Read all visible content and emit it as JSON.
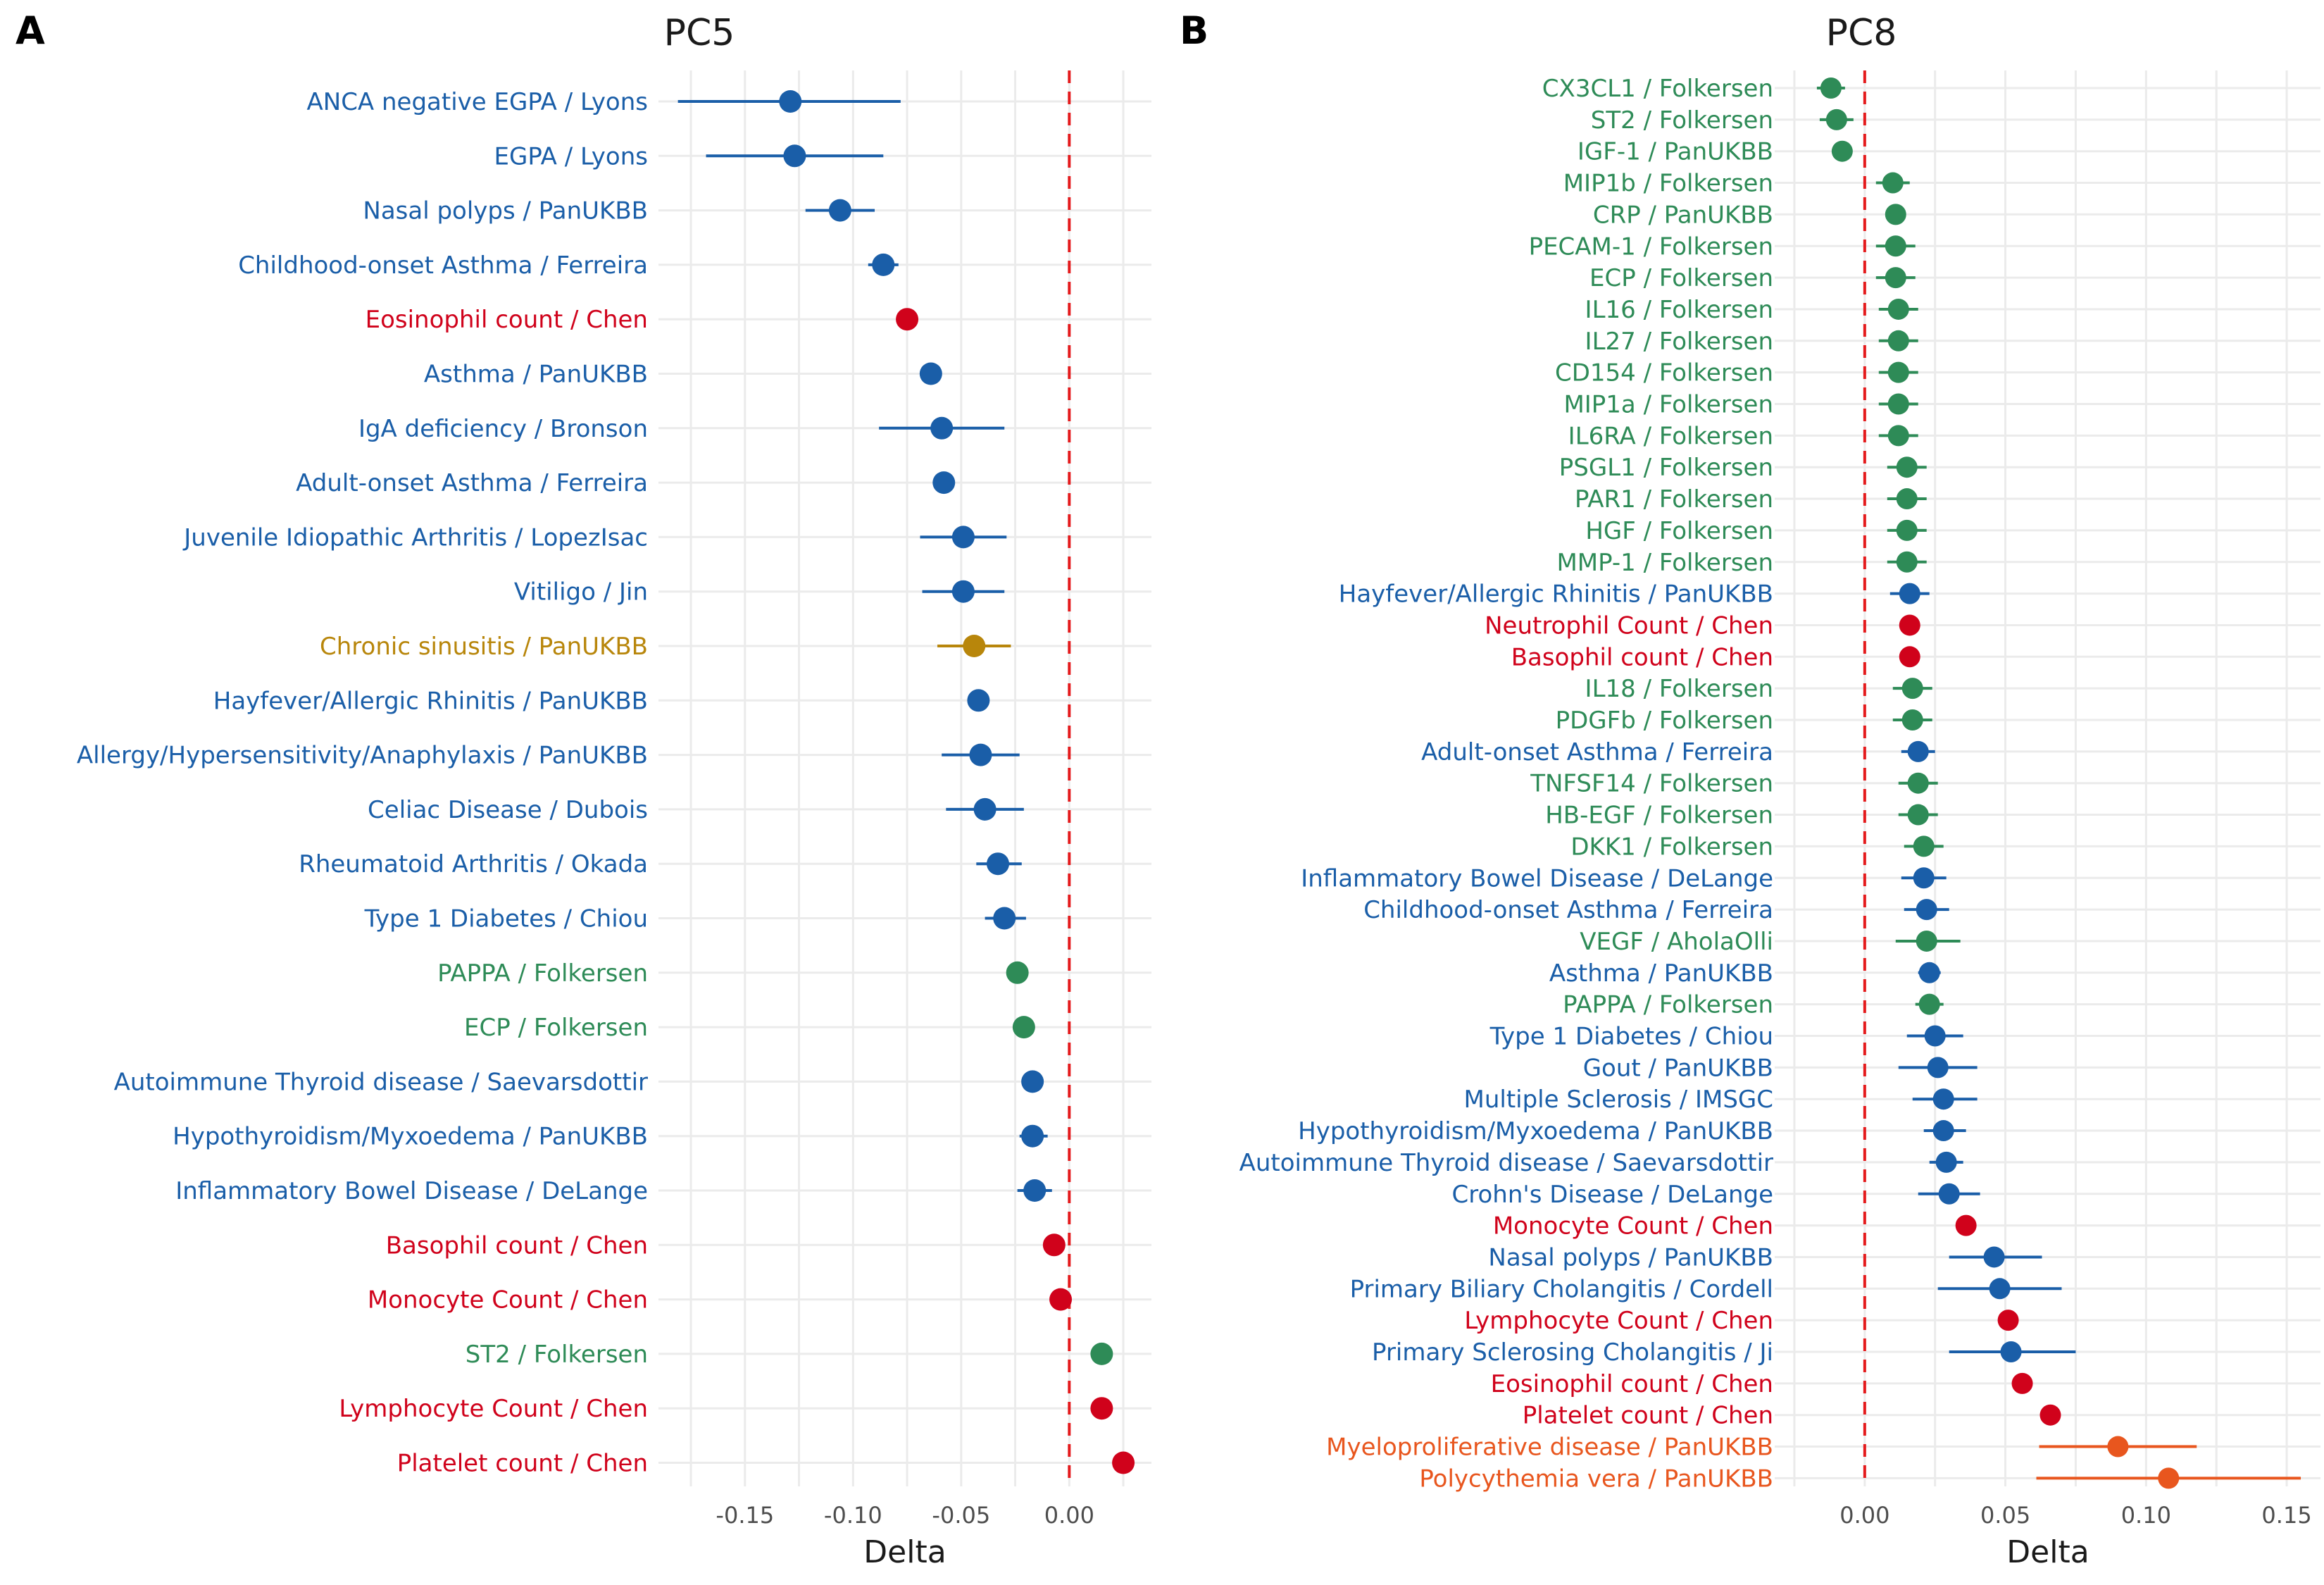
{
  "colors": {
    "blue": "#1a5ea8",
    "red": "#d0021b",
    "green": "#2e8b57",
    "gold": "#b8860b",
    "orange": "#e8561e",
    "reference_line": "#e41a1c"
  },
  "chart_data": [
    {
      "type": "scatter",
      "panel": "A",
      "title": "PC5",
      "xlabel": "Delta",
      "ylabel": "",
      "xlim": [
        -0.19,
        0.038
      ],
      "xticks": [
        -0.15,
        -0.1,
        -0.05,
        0.0
      ],
      "xtick_labels": [
        "-0.15",
        "-0.10",
        "-0.05",
        "0.00"
      ],
      "reference_line_x": 0,
      "grid": true,
      "rows": [
        {
          "label": "ANCA negative EGPA / Lyons",
          "delta": -0.129,
          "lo": -0.181,
          "hi": -0.078,
          "group": "blue"
        },
        {
          "label": "EGPA / Lyons",
          "delta": -0.127,
          "lo": -0.168,
          "hi": -0.086,
          "group": "blue"
        },
        {
          "label": "Nasal polyps / PanUKBB",
          "delta": -0.106,
          "lo": -0.122,
          "hi": -0.09,
          "group": "blue"
        },
        {
          "label": "Childhood-onset Asthma / Ferreira",
          "delta": -0.086,
          "lo": -0.093,
          "hi": -0.079,
          "group": "blue"
        },
        {
          "label": "Eosinophil count / Chen",
          "delta": -0.075,
          "lo": -0.077,
          "hi": -0.073,
          "group": "red"
        },
        {
          "label": "Asthma / PanUKBB",
          "delta": -0.064,
          "lo": -0.067,
          "hi": -0.061,
          "group": "blue"
        },
        {
          "label": "IgA deficiency / Bronson",
          "delta": -0.059,
          "lo": -0.088,
          "hi": -0.03,
          "group": "blue"
        },
        {
          "label": "Adult-onset Asthma / Ferreira",
          "delta": -0.058,
          "lo": -0.063,
          "hi": -0.053,
          "group": "blue"
        },
        {
          "label": "Juvenile Idiopathic Arthritis / LopezIsac",
          "delta": -0.049,
          "lo": -0.069,
          "hi": -0.029,
          "group": "blue"
        },
        {
          "label": "Vitiligo / Jin",
          "delta": -0.049,
          "lo": -0.068,
          "hi": -0.03,
          "group": "blue"
        },
        {
          "label": "Chronic sinusitis / PanUKBB",
          "delta": -0.044,
          "lo": -0.061,
          "hi": -0.027,
          "group": "gold"
        },
        {
          "label": "Hayfever/Allergic Rhinitis / PanUKBB",
          "delta": -0.042,
          "lo": -0.047,
          "hi": -0.037,
          "group": "blue"
        },
        {
          "label": "Allergy/Hypersensitivity/Anaphylaxis / PanUKBB",
          "delta": -0.041,
          "lo": -0.059,
          "hi": -0.023,
          "group": "blue"
        },
        {
          "label": "Celiac Disease / Dubois",
          "delta": -0.039,
          "lo": -0.057,
          "hi": -0.021,
          "group": "blue"
        },
        {
          "label": "Rheumatoid Arthritis / Okada",
          "delta": -0.033,
          "lo": -0.043,
          "hi": -0.022,
          "group": "blue"
        },
        {
          "label": "Type 1 Diabetes / Chiou",
          "delta": -0.03,
          "lo": -0.039,
          "hi": -0.02,
          "group": "blue"
        },
        {
          "label": "PAPPA / Folkersen",
          "delta": -0.024,
          "lo": -0.029,
          "hi": -0.019,
          "group": "green"
        },
        {
          "label": "ECP / Folkersen",
          "delta": -0.021,
          "lo": -0.026,
          "hi": -0.016,
          "group": "green"
        },
        {
          "label": "Autoimmune Thyroid disease / Saevarsdottir",
          "delta": -0.017,
          "lo": -0.022,
          "hi": -0.012,
          "group": "blue"
        },
        {
          "label": "Hypothyroidism/Myxoedema / PanUKBB",
          "delta": -0.017,
          "lo": -0.023,
          "hi": -0.01,
          "group": "blue"
        },
        {
          "label": "Inflammatory Bowel Disease / DeLange",
          "delta": -0.016,
          "lo": -0.024,
          "hi": -0.008,
          "group": "blue"
        },
        {
          "label": "Basophil count / Chen",
          "delta": -0.007,
          "lo": -0.009,
          "hi": -0.005,
          "group": "red"
        },
        {
          "label": "Monocyte Count / Chen",
          "delta": -0.004,
          "lo": -0.006,
          "hi": -0.002,
          "group": "red"
        },
        {
          "label": "ST2 / Folkersen",
          "delta": 0.015,
          "lo": 0.01,
          "hi": 0.02,
          "group": "green"
        },
        {
          "label": "Lymphocyte Count / Chen",
          "delta": 0.015,
          "lo": 0.013,
          "hi": 0.017,
          "group": "red"
        },
        {
          "label": "Platelet count / Chen",
          "delta": 0.025,
          "lo": 0.023,
          "hi": 0.027,
          "group": "red"
        }
      ]
    },
    {
      "type": "scatter",
      "panel": "B",
      "title": "PC8",
      "xlabel": "Delta",
      "ylabel": "",
      "xlim": [
        -0.032,
        0.162
      ],
      "xticks": [
        0.0,
        0.05,
        0.1,
        0.15
      ],
      "xtick_labels": [
        "0.00",
        "0.05",
        "0.10",
        "0.15"
      ],
      "reference_line_x": 0,
      "grid": true,
      "rows": [
        {
          "label": "CX3CL1 / Folkersen",
          "delta": -0.012,
          "lo": -0.017,
          "hi": -0.007,
          "group": "green"
        },
        {
          "label": "ST2 / Folkersen",
          "delta": -0.01,
          "lo": -0.016,
          "hi": -0.004,
          "group": "green"
        },
        {
          "label": "IGF-1 / PanUKBB",
          "delta": -0.008,
          "lo": -0.01,
          "hi": -0.006,
          "group": "green"
        },
        {
          "label": "MIP1b / Folkersen",
          "delta": 0.01,
          "lo": 0.004,
          "hi": 0.016,
          "group": "green"
        },
        {
          "label": "CRP / PanUKBB",
          "delta": 0.011,
          "lo": 0.009,
          "hi": 0.013,
          "group": "green"
        },
        {
          "label": "PECAM-1 / Folkersen",
          "delta": 0.011,
          "lo": 0.004,
          "hi": 0.018,
          "group": "green"
        },
        {
          "label": "ECP / Folkersen",
          "delta": 0.011,
          "lo": 0.004,
          "hi": 0.018,
          "group": "green"
        },
        {
          "label": "IL16 / Folkersen",
          "delta": 0.012,
          "lo": 0.005,
          "hi": 0.019,
          "group": "green"
        },
        {
          "label": "IL27 / Folkersen",
          "delta": 0.012,
          "lo": 0.005,
          "hi": 0.019,
          "group": "green"
        },
        {
          "label": "CD154 / Folkersen",
          "delta": 0.012,
          "lo": 0.005,
          "hi": 0.019,
          "group": "green"
        },
        {
          "label": "MIP1a / Folkersen",
          "delta": 0.012,
          "lo": 0.005,
          "hi": 0.019,
          "group": "green"
        },
        {
          "label": "IL6RA / Folkersen",
          "delta": 0.012,
          "lo": 0.005,
          "hi": 0.019,
          "group": "green"
        },
        {
          "label": "PSGL1 / Folkersen",
          "delta": 0.015,
          "lo": 0.008,
          "hi": 0.022,
          "group": "green"
        },
        {
          "label": "PAR1 / Folkersen",
          "delta": 0.015,
          "lo": 0.008,
          "hi": 0.022,
          "group": "green"
        },
        {
          "label": "HGF / Folkersen",
          "delta": 0.015,
          "lo": 0.008,
          "hi": 0.022,
          "group": "green"
        },
        {
          "label": "MMP-1 / Folkersen",
          "delta": 0.015,
          "lo": 0.008,
          "hi": 0.022,
          "group": "green"
        },
        {
          "label": "Hayfever/Allergic Rhinitis / PanUKBB",
          "delta": 0.016,
          "lo": 0.009,
          "hi": 0.023,
          "group": "blue"
        },
        {
          "label": "Neutrophil Count / Chen",
          "delta": 0.016,
          "lo": 0.014,
          "hi": 0.018,
          "group": "red"
        },
        {
          "label": "Basophil count / Chen",
          "delta": 0.016,
          "lo": 0.014,
          "hi": 0.018,
          "group": "red"
        },
        {
          "label": "IL18 / Folkersen",
          "delta": 0.017,
          "lo": 0.01,
          "hi": 0.024,
          "group": "green"
        },
        {
          "label": "PDGFb / Folkersen",
          "delta": 0.017,
          "lo": 0.01,
          "hi": 0.024,
          "group": "green"
        },
        {
          "label": "Adult-onset Asthma / Ferreira",
          "delta": 0.019,
          "lo": 0.013,
          "hi": 0.025,
          "group": "blue"
        },
        {
          "label": "TNFSF14 / Folkersen",
          "delta": 0.019,
          "lo": 0.012,
          "hi": 0.026,
          "group": "green"
        },
        {
          "label": "HB-EGF / Folkersen",
          "delta": 0.019,
          "lo": 0.012,
          "hi": 0.026,
          "group": "green"
        },
        {
          "label": "DKK1 / Folkersen",
          "delta": 0.021,
          "lo": 0.014,
          "hi": 0.028,
          "group": "green"
        },
        {
          "label": "Inflammatory Bowel Disease / DeLange",
          "delta": 0.021,
          "lo": 0.013,
          "hi": 0.029,
          "group": "blue"
        },
        {
          "label": "Childhood-onset Asthma / Ferreira",
          "delta": 0.022,
          "lo": 0.014,
          "hi": 0.03,
          "group": "blue"
        },
        {
          "label": "VEGF / AholaOlli",
          "delta": 0.022,
          "lo": 0.011,
          "hi": 0.034,
          "group": "green"
        },
        {
          "label": "Asthma / PanUKBB",
          "delta": 0.023,
          "lo": 0.019,
          "hi": 0.027,
          "group": "blue"
        },
        {
          "label": "PAPPA / Folkersen",
          "delta": 0.023,
          "lo": 0.018,
          "hi": 0.028,
          "group": "green"
        },
        {
          "label": "Type 1 Diabetes / Chiou",
          "delta": 0.025,
          "lo": 0.015,
          "hi": 0.035,
          "group": "blue"
        },
        {
          "label": "Gout / PanUKBB",
          "delta": 0.026,
          "lo": 0.012,
          "hi": 0.04,
          "group": "blue"
        },
        {
          "label": "Multiple Sclerosis / IMSGC",
          "delta": 0.028,
          "lo": 0.017,
          "hi": 0.04,
          "group": "blue"
        },
        {
          "label": "Hypothyroidism/Myxoedema / PanUKBB",
          "delta": 0.028,
          "lo": 0.021,
          "hi": 0.036,
          "group": "blue"
        },
        {
          "label": "Autoimmune Thyroid disease / Saevarsdottir",
          "delta": 0.029,
          "lo": 0.023,
          "hi": 0.035,
          "group": "blue"
        },
        {
          "label": "Crohn's Disease / DeLange",
          "delta": 0.03,
          "lo": 0.019,
          "hi": 0.041,
          "group": "blue"
        },
        {
          "label": "Monocyte Count / Chen",
          "delta": 0.036,
          "lo": 0.034,
          "hi": 0.038,
          "group": "red"
        },
        {
          "label": "Nasal polyps / PanUKBB",
          "delta": 0.046,
          "lo": 0.03,
          "hi": 0.063,
          "group": "blue"
        },
        {
          "label": "Primary Biliary Cholangitis / Cordell",
          "delta": 0.048,
          "lo": 0.026,
          "hi": 0.07,
          "group": "blue"
        },
        {
          "label": "Lymphocyte Count / Chen",
          "delta": 0.051,
          "lo": 0.049,
          "hi": 0.053,
          "group": "red"
        },
        {
          "label": "Primary Sclerosing Cholangitis / Ji",
          "delta": 0.052,
          "lo": 0.03,
          "hi": 0.075,
          "group": "blue"
        },
        {
          "label": "Eosinophil count / Chen",
          "delta": 0.056,
          "lo": 0.054,
          "hi": 0.058,
          "group": "red"
        },
        {
          "label": "Platelet count / Chen",
          "delta": 0.066,
          "lo": 0.064,
          "hi": 0.068,
          "group": "red"
        },
        {
          "label": "Myeloproliferative disease / PanUKBB",
          "delta": 0.09,
          "lo": 0.062,
          "hi": 0.118,
          "group": "orange"
        },
        {
          "label": "Polycythemia vera / PanUKBB",
          "delta": 0.108,
          "lo": 0.061,
          "hi": 0.155,
          "group": "orange"
        }
      ]
    }
  ]
}
